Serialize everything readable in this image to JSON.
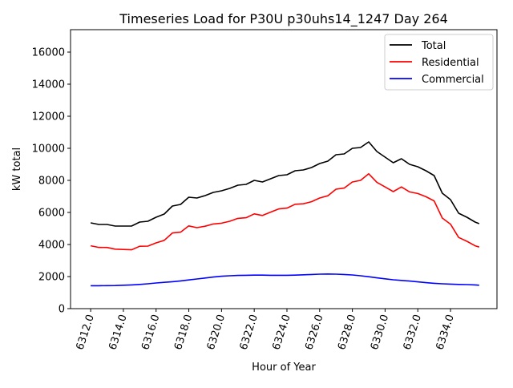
{
  "chart_data": {
    "type": "line",
    "title": "Timeseries Load for P30U p30uhs14_1247  Day 264",
    "xlabel": "Hour of Year",
    "ylabel": "kW total",
    "xlim": [
      6310.77,
      6336.84
    ],
    "ylim": [
      0,
      17400
    ],
    "xticks": [
      6312,
      6314,
      6316,
      6318,
      6320,
      6322,
      6324,
      6326,
      6328,
      6330,
      6332,
      6334
    ],
    "xtick_labels": [
      "6312.0",
      "6314.0",
      "6316.0",
      "6318.0",
      "6320.0",
      "6322.0",
      "6324.0",
      "6326.0",
      "6328.0",
      "6330.0",
      "6332.0",
      "6334.0"
    ],
    "yticks": [
      0,
      2000,
      4000,
      6000,
      8000,
      10000,
      12000,
      14000,
      16000
    ],
    "ytick_labels": [
      "0",
      "2000",
      "4000",
      "6000",
      "8000",
      "10000",
      "12000",
      "14000",
      "16000"
    ],
    "grid": false,
    "legend_position": "top-right",
    "x": [
      6312,
      6312.5,
      6313,
      6313.5,
      6314,
      6314.5,
      6315,
      6315.5,
      6316,
      6316.5,
      6317,
      6317.5,
      6318,
      6318.5,
      6319,
      6319.5,
      6320,
      6320.5,
      6321,
      6321.5,
      6322,
      6322.5,
      6323,
      6323.5,
      6324,
      6324.5,
      6325,
      6325.5,
      6326,
      6326.5,
      6327,
      6327.5,
      6328,
      6328.5,
      6329,
      6329.5,
      6330,
      6330.5,
      6331,
      6331.5,
      6332,
      6332.5,
      6333,
      6333.5,
      6334,
      6334.5,
      6335,
      6335.5,
      6335.75
    ],
    "series": [
      {
        "name": "Total",
        "color": "#000000",
        "values": [
          5350,
          5250,
          5250,
          5150,
          5150,
          5150,
          5400,
          5450,
          5700,
          5900,
          6400,
          6500,
          6950,
          6900,
          7050,
          7250,
          7350,
          7500,
          7700,
          7750,
          8000,
          7900,
          8100,
          8300,
          8350,
          8600,
          8650,
          8800,
          9050,
          9200,
          9600,
          9650,
          10000,
          10050,
          10400,
          9800,
          9450,
          9100,
          9350,
          9000,
          8850,
          8600,
          8300,
          7200,
          6800,
          5950,
          5700,
          5400,
          5300
        ]
      },
      {
        "name": "Residential",
        "color": "#ff0000",
        "values": [
          3920,
          3820,
          3815,
          3710,
          3690,
          3670,
          3890,
          3900,
          4100,
          4260,
          4720,
          4770,
          5160,
          5050,
          5140,
          5280,
          5330,
          5450,
          5630,
          5670,
          5910,
          5810,
          6020,
          6220,
          6270,
          6510,
          6540,
          6670,
          6900,
          7040,
          7450,
          7520,
          7900,
          8000,
          8410,
          7880,
          7590,
          7300,
          7590,
          7280,
          7180,
          6980,
          6720,
          5650,
          5270,
          4440,
          4200,
          3920,
          3840
        ]
      },
      {
        "name": "Commercial",
        "color": "#0000ff",
        "values": [
          1430,
          1430,
          1435,
          1440,
          1460,
          1480,
          1510,
          1550,
          1600,
          1640,
          1680,
          1730,
          1790,
          1850,
          1910,
          1970,
          2020,
          2050,
          2070,
          2080,
          2090,
          2090,
          2080,
          2080,
          2080,
          2090,
          2110,
          2130,
          2150,
          2160,
          2150,
          2130,
          2100,
          2050,
          1990,
          1920,
          1860,
          1800,
          1760,
          1720,
          1670,
          1620,
          1580,
          1550,
          1530,
          1510,
          1500,
          1480,
          1460
        ]
      }
    ]
  }
}
